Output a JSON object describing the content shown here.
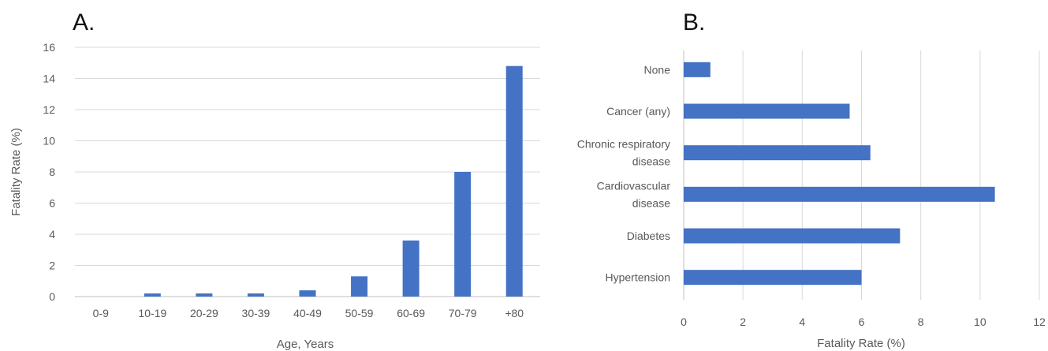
{
  "chart_data": [
    {
      "type": "bar",
      "panel_label": "A.",
      "categories": [
        "0-9",
        "10-19",
        "20-29",
        "30-39",
        "40-49",
        "50-59",
        "60-69",
        "70-79",
        "+80"
      ],
      "values": [
        0,
        0.2,
        0.2,
        0.2,
        0.4,
        1.3,
        3.6,
        8.0,
        14.8
      ],
      "xlabel": "Age, Years",
      "ylabel": "Fatality Rate (%)",
      "ylim": [
        0,
        16
      ],
      "yticks": [
        0,
        2,
        4,
        6,
        8,
        10,
        12,
        14,
        16
      ],
      "grid": "horizontal",
      "bar_color": "#4472c4"
    },
    {
      "type": "bar",
      "orientation": "horizontal",
      "panel_label": "B.",
      "categories": [
        [
          "None"
        ],
        [
          "Cancer (any)"
        ],
        [
          "Chronic respiratory",
          "disease"
        ],
        [
          "Cardiovascular",
          "disease"
        ],
        [
          "Diabetes"
        ],
        [
          "Hypertension"
        ]
      ],
      "values": [
        0.9,
        5.6,
        6.3,
        10.5,
        7.3,
        6.0
      ],
      "xlabel": "Fatality Rate (%)",
      "xlim": [
        0,
        12
      ],
      "xticks": [
        0,
        2,
        4,
        6,
        8,
        10,
        12
      ],
      "grid": "vertical",
      "bar_color": "#4472c4"
    }
  ]
}
